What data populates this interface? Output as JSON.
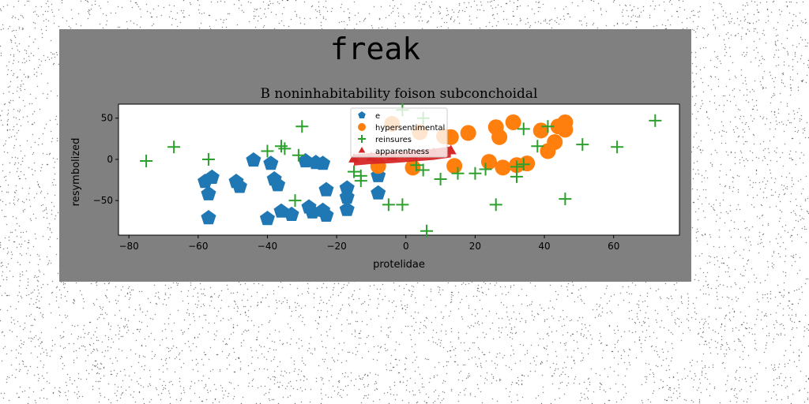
{
  "figure": {
    "suptitle": "freak",
    "title": "B noninhabitability foison subconchoidal"
  },
  "colors": {
    "background": "#ffffff",
    "figure_panel": "#808080",
    "axes_face": "#ffffff",
    "e": "#1f77b4",
    "hypersentimental": "#ff7f0e",
    "reinsures": "#2ca02c",
    "apparentness": "#d62728"
  },
  "chart_data": {
    "type": "scatter",
    "title": "B noninhabitability foison subconchoidal",
    "xlabel": "protelidae",
    "ylabel": "resymbolized",
    "xlim": [
      -83,
      79
    ],
    "ylim": [
      -92,
      67
    ],
    "xticks": [
      "−80",
      "−60",
      "−40",
      "−20",
      "0",
      "20",
      "40",
      "60"
    ],
    "yticks": [
      "50",
      "0",
      "−50"
    ],
    "grid": false,
    "legend": {
      "placement": "top-center",
      "entries": [
        "e",
        "hypersentimental",
        "reinsures",
        "apparentness"
      ]
    },
    "series": [
      {
        "name": "e",
        "marker": "pentagon",
        "points": [
          [
            -58,
            -27
          ],
          [
            -56,
            -22
          ],
          [
            -57,
            -42
          ],
          [
            -57,
            -71
          ],
          [
            -49,
            -27
          ],
          [
            -48,
            -33
          ],
          [
            -44,
            -1
          ],
          [
            -38,
            -24
          ],
          [
            -39,
            -5
          ],
          [
            -37,
            -31
          ],
          [
            -40,
            -72
          ],
          [
            -36,
            -63
          ],
          [
            -33,
            -67
          ],
          [
            -29,
            -2
          ],
          [
            -28,
            -58
          ],
          [
            -26,
            -4
          ],
          [
            -27,
            -64
          ],
          [
            -24,
            -62
          ],
          [
            -23,
            -68
          ],
          [
            -24,
            -5
          ],
          [
            -23,
            -37
          ],
          [
            -17,
            -35
          ],
          [
            -17,
            -46
          ],
          [
            -17,
            -61
          ],
          [
            -8,
            -20
          ],
          [
            -8,
            -41
          ]
        ]
      },
      {
        "name": "hypersentimental",
        "marker": "circle",
        "points": [
          [
            -8,
            -8
          ],
          [
            -4,
            43
          ],
          [
            2,
            -10
          ],
          [
            4,
            33
          ],
          [
            11,
            28
          ],
          [
            13,
            27
          ],
          [
            14,
            -8
          ],
          [
            18,
            32
          ],
          [
            24,
            -3
          ],
          [
            26,
            39
          ],
          [
            27,
            27
          ],
          [
            28,
            -10
          ],
          [
            31,
            45
          ],
          [
            32,
            -7
          ],
          [
            35,
            -5
          ],
          [
            39,
            35
          ],
          [
            41,
            10
          ],
          [
            43,
            21
          ],
          [
            44,
            40
          ],
          [
            46,
            45
          ],
          [
            46,
            36
          ]
        ]
      },
      {
        "name": "reinsures",
        "marker": "plus",
        "points": [
          [
            -75,
            -2
          ],
          [
            -67,
            15
          ],
          [
            -57,
            0
          ],
          [
            -40,
            10
          ],
          [
            -36,
            16
          ],
          [
            -35,
            13
          ],
          [
            -31,
            5
          ],
          [
            -30,
            40
          ],
          [
            -32,
            -50
          ],
          [
            -15,
            -15
          ],
          [
            -13,
            -20
          ],
          [
            -13,
            -26
          ],
          [
            -5,
            -55
          ],
          [
            -1,
            -55
          ],
          [
            -1,
            60
          ],
          [
            3,
            -7
          ],
          [
            5,
            -13
          ],
          [
            5,
            50
          ],
          [
            6,
            -87
          ],
          [
            10,
            -24
          ],
          [
            15,
            -17
          ],
          [
            20,
            -17
          ],
          [
            23,
            -12
          ],
          [
            26,
            -55
          ],
          [
            32,
            -21
          ],
          [
            32,
            -9
          ],
          [
            34,
            37
          ],
          [
            34,
            -6
          ],
          [
            38,
            16
          ],
          [
            41,
            40
          ],
          [
            46,
            -48
          ],
          [
            51,
            18
          ],
          [
            61,
            15
          ],
          [
            72,
            47
          ]
        ]
      },
      {
        "name": "apparentness",
        "marker": "triangle",
        "points": [
          [
            -15,
            0
          ],
          [
            -10,
            2
          ],
          [
            -4,
            3
          ],
          [
            2,
            5
          ],
          [
            8,
            7
          ],
          [
            13,
            10
          ]
        ]
      }
    ]
  }
}
